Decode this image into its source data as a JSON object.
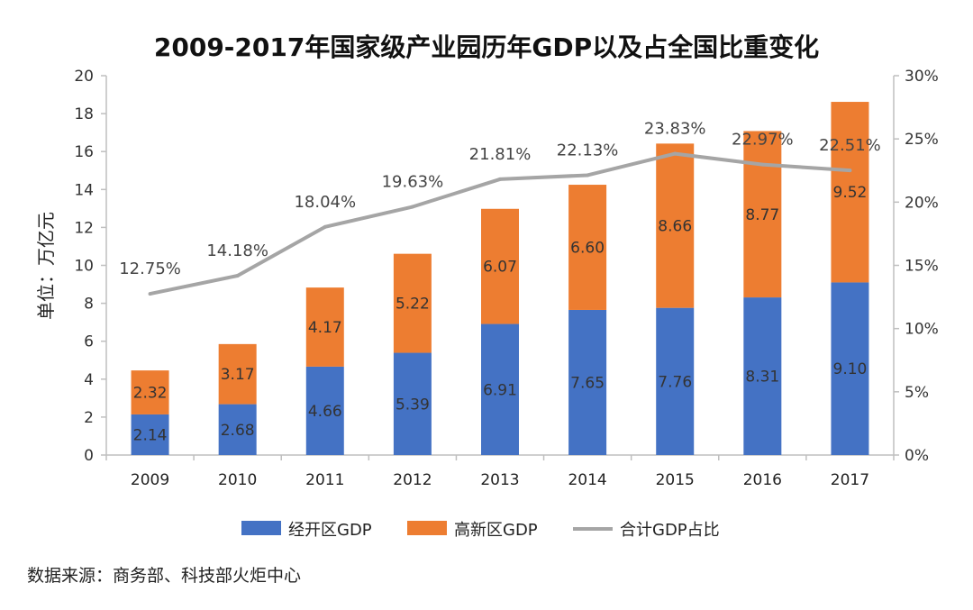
{
  "chart_data": {
    "type": "bar",
    "stacked": true,
    "title": "2009-2017年国家级产业园历年GDP以及占全国比重变化",
    "ylabel": "单位：万亿元",
    "ylim": [
      0,
      20
    ],
    "yticks": [
      "0",
      "2",
      "4",
      "6",
      "8",
      "10",
      "12",
      "14",
      "16",
      "18",
      "20"
    ],
    "y2lim": [
      0,
      30
    ],
    "y2ticks": [
      "0%",
      "5%",
      "10%",
      "15%",
      "20%",
      "25%",
      "30%"
    ],
    "categories": [
      "2009",
      "2010",
      "2011",
      "2012",
      "2013",
      "2014",
      "2015",
      "2016",
      "2017"
    ],
    "series": [
      {
        "name": "经开区GDP",
        "type": "bar",
        "axis": "left",
        "color": "#4472C4",
        "values": [
          2.14,
          2.68,
          4.66,
          5.39,
          6.91,
          7.65,
          7.76,
          8.31,
          9.1
        ],
        "labels": [
          "2.14",
          "2.68",
          "4.66",
          "5.39",
          "6.91",
          "7.65",
          "7.76",
          "8.31",
          "9.10"
        ]
      },
      {
        "name": "高新区GDP",
        "type": "bar",
        "axis": "left",
        "color": "#ED7D31",
        "values": [
          2.32,
          3.17,
          4.17,
          5.22,
          6.07,
          6.6,
          8.66,
          8.77,
          9.52
        ],
        "labels": [
          "2.32",
          "3.17",
          "4.17",
          "5.22",
          "6.07",
          "6.60",
          "8.66",
          "8.77",
          "9.52"
        ]
      },
      {
        "name": "合计GDP占比",
        "type": "line",
        "axis": "right",
        "color": "#A5A5A5",
        "values": [
          12.75,
          14.18,
          18.04,
          19.63,
          21.81,
          22.13,
          23.83,
          22.97,
          22.51
        ],
        "labels": [
          "12.75%",
          "14.18%",
          "18.04%",
          "19.63%",
          "21.81%",
          "22.13%",
          "23.83%",
          "22.97%",
          "22.51%"
        ]
      }
    ],
    "legend": "bottom",
    "grid": false
  },
  "source_note": "数据来源：商务部、科技部火炬中心"
}
